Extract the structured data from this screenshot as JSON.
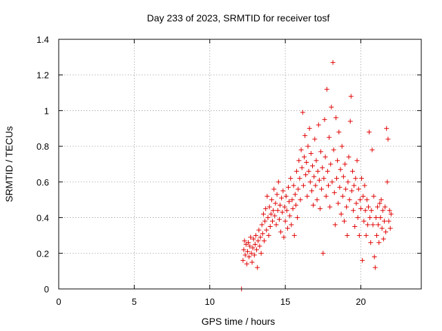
{
  "chart_data": {
    "type": "scatter",
    "title": "Day 233 of 2023, SRMTID for receiver tosf",
    "xlabel": "GPS time / hours",
    "ylabel": "SRMTID / TECUs",
    "xlim": [
      0,
      24
    ],
    "ylim": [
      0,
      1.4
    ],
    "xticks": [
      0,
      5,
      10,
      15,
      20
    ],
    "xtick_labels": [
      "0",
      "5",
      "10",
      "15",
      "20"
    ],
    "yticks": [
      0,
      0.2,
      0.4,
      0.6,
      0.8,
      1.0,
      1.2,
      1.4
    ],
    "ytick_labels": [
      "0",
      "0.2",
      "0.4",
      "0.6",
      "0.8",
      "1",
      "1.2",
      "1.4"
    ],
    "grid": true,
    "marker": "plus",
    "color": "#e00000",
    "series": [
      {
        "name": "SRMTID",
        "points": [
          [
            12.1,
            0.0
          ],
          [
            12.2,
            0.16
          ],
          [
            12.25,
            0.22
          ],
          [
            12.3,
            0.27
          ],
          [
            12.35,
            0.19
          ],
          [
            12.4,
            0.25
          ],
          [
            12.45,
            0.14
          ],
          [
            12.5,
            0.21
          ],
          [
            12.55,
            0.26
          ],
          [
            12.6,
            0.18
          ],
          [
            12.65,
            0.24
          ],
          [
            12.7,
            0.29
          ],
          [
            12.75,
            0.2
          ],
          [
            12.8,
            0.15
          ],
          [
            12.85,
            0.23
          ],
          [
            12.9,
            0.28
          ],
          [
            12.95,
            0.19
          ],
          [
            13.0,
            0.25
          ],
          [
            13.05,
            0.3
          ],
          [
            13.1,
            0.22
          ],
          [
            13.15,
            0.12
          ],
          [
            13.2,
            0.27
          ],
          [
            13.25,
            0.33
          ],
          [
            13.3,
            0.24
          ],
          [
            13.35,
            0.29
          ],
          [
            13.4,
            0.2
          ],
          [
            13.45,
            0.36
          ],
          [
            13.5,
            0.31
          ],
          [
            13.55,
            0.42
          ],
          [
            13.6,
            0.27
          ],
          [
            13.65,
            0.38
          ],
          [
            13.7,
            0.45
          ],
          [
            13.75,
            0.33
          ],
          [
            13.8,
            0.52
          ],
          [
            13.85,
            0.4
          ],
          [
            13.9,
            0.3
          ],
          [
            13.95,
            0.46
          ],
          [
            14.0,
            0.35
          ],
          [
            14.05,
            0.42
          ],
          [
            14.1,
            0.5
          ],
          [
            14.15,
            0.38
          ],
          [
            14.2,
            0.44
          ],
          [
            14.25,
            0.56
          ],
          [
            14.3,
            0.41
          ],
          [
            14.35,
            0.48
          ],
          [
            14.4,
            0.36
          ],
          [
            14.45,
            0.53
          ],
          [
            14.5,
            0.44
          ],
          [
            14.55,
            0.6
          ],
          [
            14.6,
            0.39
          ],
          [
            14.65,
            0.47
          ],
          [
            14.7,
            0.32
          ],
          [
            14.75,
            0.51
          ],
          [
            14.8,
            0.43
          ],
          [
            14.85,
            0.55
          ],
          [
            14.9,
            0.29
          ],
          [
            14.95,
            0.46
          ],
          [
            15.0,
            0.38
          ],
          [
            15.05,
            0.52
          ],
          [
            15.1,
            0.44
          ],
          [
            15.15,
            0.34
          ],
          [
            15.2,
            0.57
          ],
          [
            15.25,
            0.49
          ],
          [
            15.3,
            0.41
          ],
          [
            15.35,
            0.62
          ],
          [
            15.4,
            0.36
          ],
          [
            15.45,
            0.5
          ],
          [
            15.5,
            0.45
          ],
          [
            15.55,
            0.58
          ],
          [
            15.6,
            0.3
          ],
          [
            15.65,
            0.53
          ],
          [
            15.7,
            0.47
          ],
          [
            15.75,
            0.66
          ],
          [
            15.8,
            0.4
          ],
          [
            15.85,
            0.56
          ],
          [
            15.9,
            0.72
          ],
          [
            15.95,
            0.62
          ],
          [
            16.0,
            0.5
          ],
          [
            16.05,
            0.78
          ],
          [
            16.1,
            0.68
          ],
          [
            16.15,
            0.99
          ],
          [
            16.2,
            0.58
          ],
          [
            16.25,
            0.74
          ],
          [
            16.3,
            0.86
          ],
          [
            16.35,
            0.64
          ],
          [
            16.4,
            0.71
          ],
          [
            16.45,
            0.52
          ],
          [
            16.5,
            0.8
          ],
          [
            16.55,
            0.66
          ],
          [
            16.6,
            0.9
          ],
          [
            16.65,
            0.6
          ],
          [
            16.7,
            0.76
          ],
          [
            16.75,
            0.55
          ],
          [
            16.8,
            0.69
          ],
          [
            16.85,
            0.47
          ],
          [
            16.9,
            0.63
          ],
          [
            16.95,
            0.84
          ],
          [
            17.0,
            0.58
          ],
          [
            17.05,
            0.72
          ],
          [
            17.1,
            0.5
          ],
          [
            17.15,
            0.66
          ],
          [
            17.2,
            0.92
          ],
          [
            17.25,
            0.61
          ],
          [
            17.3,
            0.45
          ],
          [
            17.35,
            0.77
          ],
          [
            17.4,
            0.56
          ],
          [
            17.45,
            0.68
          ],
          [
            17.5,
            0.2
          ],
          [
            17.55,
            0.62
          ],
          [
            17.6,
            0.95
          ],
          [
            17.65,
            0.74
          ],
          [
            17.7,
            0.52
          ],
          [
            17.75,
            1.12
          ],
          [
            17.8,
            0.66
          ],
          [
            17.85,
            0.58
          ],
          [
            17.9,
            0.85
          ],
          [
            17.95,
            0.46
          ],
          [
            18.0,
            0.7
          ],
          [
            18.05,
            1.02
          ],
          [
            18.1,
            0.6
          ],
          [
            18.15,
            1.27
          ],
          [
            18.2,
            0.78
          ],
          [
            18.25,
            0.54
          ],
          [
            18.3,
            0.36
          ],
          [
            18.35,
            0.96
          ],
          [
            18.4,
            0.62
          ],
          [
            18.45,
            0.72
          ],
          [
            18.5,
            0.48
          ],
          [
            18.55,
            0.88
          ],
          [
            18.6,
            0.57
          ],
          [
            18.65,
            0.67
          ],
          [
            18.7,
            0.42
          ],
          [
            18.75,
            0.8
          ],
          [
            18.8,
            0.52
          ],
          [
            18.85,
            0.63
          ],
          [
            18.9,
            0.38
          ],
          [
            18.95,
            0.7
          ],
          [
            19.0,
            0.56
          ],
          [
            19.05,
            0.46
          ],
          [
            19.1,
            0.3
          ],
          [
            19.15,
            0.6
          ],
          [
            19.2,
            0.74
          ],
          [
            19.25,
            0.5
          ],
          [
            19.3,
            0.94
          ],
          [
            19.35,
            1.08
          ],
          [
            19.4,
            0.55
          ],
          [
            19.45,
            0.66
          ],
          [
            19.5,
            0.44
          ],
          [
            19.55,
            0.58
          ],
          [
            19.6,
            0.35
          ],
          [
            19.65,
            0.62
          ],
          [
            19.7,
            0.48
          ],
          [
            19.75,
            0.72
          ],
          [
            19.8,
            0.4
          ],
          [
            19.85,
            0.56
          ],
          [
            19.9,
            0.3
          ],
          [
            19.95,
            0.5
          ],
          [
            20.0,
            0.45
          ],
          [
            20.05,
            0.62
          ],
          [
            20.1,
            0.16
          ],
          [
            20.15,
            0.52
          ],
          [
            20.2,
            0.38
          ],
          [
            20.25,
            0.58
          ],
          [
            20.3,
            0.44
          ],
          [
            20.35,
            0.3
          ],
          [
            20.4,
            0.5
          ],
          [
            20.45,
            0.36
          ],
          [
            20.5,
            0.46
          ],
          [
            20.55,
            0.88
          ],
          [
            20.6,
            0.4
          ],
          [
            20.65,
            0.26
          ],
          [
            20.7,
            0.44
          ],
          [
            20.75,
            0.78
          ],
          [
            20.8,
            0.36
          ],
          [
            20.85,
            0.52
          ],
          [
            20.9,
            0.18
          ],
          [
            20.95,
            0.12
          ],
          [
            21.0,
            0.4
          ],
          [
            21.05,
            0.3
          ],
          [
            21.1,
            0.46
          ],
          [
            21.15,
            0.36
          ],
          [
            21.2,
            0.26
          ],
          [
            21.25,
            0.48
          ],
          [
            21.3,
            0.4
          ],
          [
            21.35,
            0.5
          ],
          [
            21.4,
            0.34
          ],
          [
            21.45,
            0.44
          ],
          [
            21.5,
            0.28
          ],
          [
            21.55,
            0.38
          ],
          [
            21.6,
            0.46
          ],
          [
            21.65,
            0.32
          ],
          [
            21.7,
            0.9
          ],
          [
            21.75,
            0.6
          ],
          [
            21.8,
            0.84
          ],
          [
            21.85,
            0.38
          ],
          [
            21.9,
            0.44
          ],
          [
            21.95,
            0.34
          ],
          [
            22.0,
            0.42
          ]
        ]
      }
    ]
  }
}
